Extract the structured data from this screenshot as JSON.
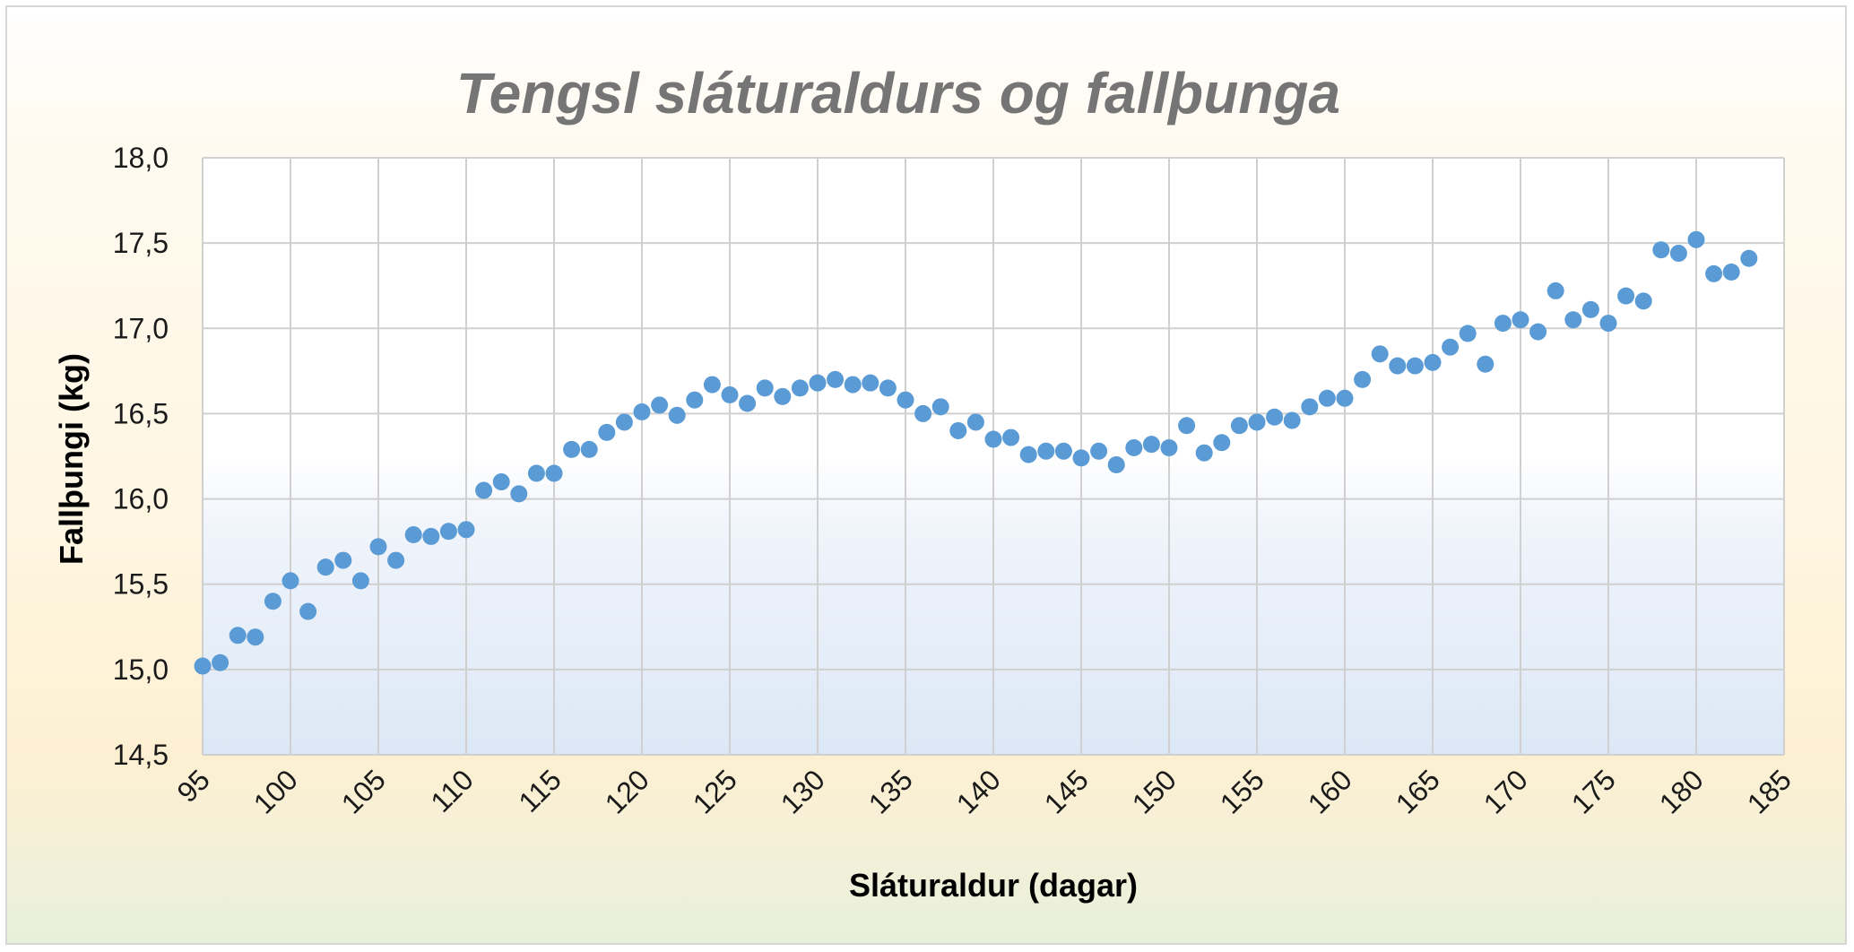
{
  "chart_data": {
    "type": "scatter",
    "title": "Tengsl sláturaldurs og fallþunga",
    "xlabel": "Sláturaldur (dagar)",
    "ylabel": "Fallþungi (kg)",
    "xlim": [
      95,
      185
    ],
    "ylim": [
      14.5,
      18.0
    ],
    "x_ticks": [
      "95",
      "100",
      "105",
      "110",
      "115",
      "120",
      "125",
      "130",
      "135",
      "140",
      "145",
      "150",
      "155",
      "160",
      "165",
      "170",
      "175",
      "180",
      "185"
    ],
    "y_ticks": [
      "14,5",
      "15,0",
      "15,5",
      "16,0",
      "16,5",
      "17,0",
      "17,5",
      "18,0"
    ],
    "grid": true,
    "legend": "none",
    "series": [
      {
        "color": "#5b9bd5",
        "x": [
          95,
          96,
          97,
          98,
          99,
          100,
          101,
          102,
          103,
          104,
          105,
          106,
          107,
          108,
          109,
          110,
          111,
          112,
          113,
          114,
          115,
          116,
          117,
          118,
          119,
          120,
          121,
          122,
          123,
          124,
          125,
          126,
          127,
          128,
          129,
          130,
          131,
          132,
          133,
          134,
          135,
          136,
          137,
          138,
          139,
          140,
          141,
          142,
          143,
          144,
          145,
          146,
          147,
          148,
          149,
          150,
          151,
          152,
          153,
          154,
          155,
          156,
          157,
          158,
          159,
          160,
          161,
          162,
          163,
          164,
          165,
          166,
          167,
          168,
          169,
          170,
          171,
          172,
          173,
          174,
          175,
          176,
          177,
          178,
          179,
          180,
          181,
          182,
          183
        ],
        "y": [
          15.02,
          15.04,
          15.2,
          15.19,
          15.4,
          15.52,
          15.34,
          15.6,
          15.64,
          15.52,
          15.72,
          15.64,
          15.79,
          15.78,
          15.81,
          15.82,
          16.05,
          16.1,
          16.03,
          16.15,
          16.15,
          16.29,
          16.29,
          16.39,
          16.45,
          16.51,
          16.55,
          16.49,
          16.58,
          16.67,
          16.61,
          16.56,
          16.65,
          16.6,
          16.65,
          16.68,
          16.7,
          16.67,
          16.68,
          16.65,
          16.58,
          16.5,
          16.54,
          16.4,
          16.45,
          16.35,
          16.36,
          16.26,
          16.28,
          16.28,
          16.24,
          16.28,
          16.2,
          16.3,
          16.32,
          16.3,
          16.43,
          16.27,
          16.33,
          16.43,
          16.45,
          16.48,
          16.46,
          16.54,
          16.59,
          16.59,
          16.7,
          16.85,
          16.78,
          16.78,
          16.8,
          16.89,
          16.97,
          16.79,
          17.03,
          17.05,
          16.98,
          17.22,
          17.05,
          17.11,
          17.03,
          17.19,
          17.16,
          17.46,
          17.44,
          17.52,
          17.32,
          17.33,
          17.41
        ]
      }
    ]
  }
}
